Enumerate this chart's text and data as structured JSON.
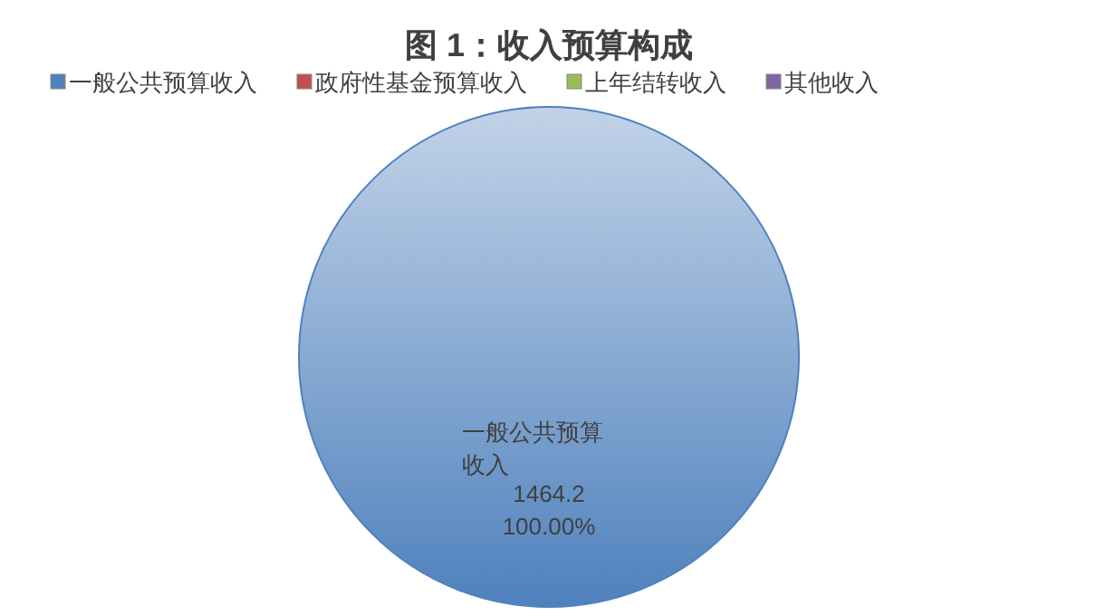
{
  "chart_data": {
    "type": "pie",
    "title": "图 1：收入预算构成",
    "categories": [
      "一般公共预算收入",
      "政府性基金预算收入",
      "上年结转收入",
      "其他收入"
    ],
    "values": [
      1464.2,
      0,
      0,
      0
    ],
    "colors": [
      "#4f81bd",
      "#c0504d",
      "#9bbb59",
      "#8064a2"
    ],
    "value_labels": [
      "1464.2",
      null,
      null,
      null
    ],
    "annotations": [
      "100.00%"
    ],
    "legend": "top"
  }
}
